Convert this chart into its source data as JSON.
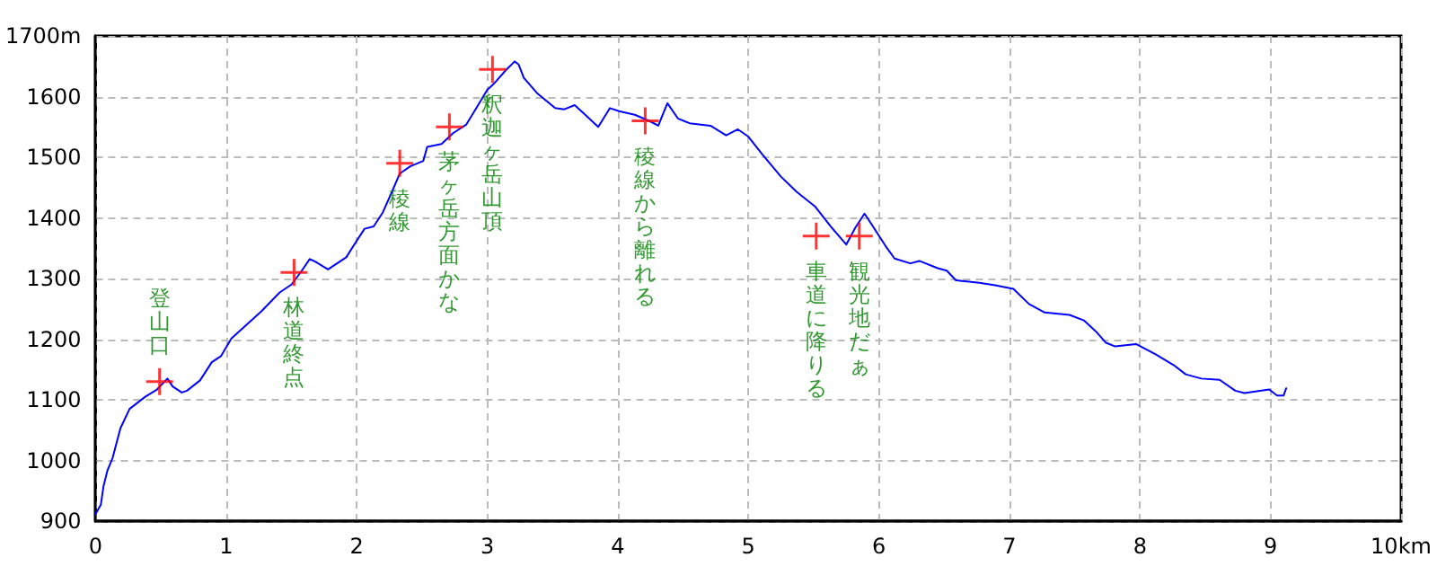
{
  "chart_data": {
    "type": "line",
    "xlim": [
      0,
      10
    ],
    "ylim": [
      900,
      1700
    ],
    "xticks": [
      0,
      1,
      2,
      3,
      4,
      5,
      6,
      7,
      8,
      9,
      {
        "value": 10,
        "label": "10km"
      }
    ],
    "yticks": [
      900,
      1000,
      1100,
      1200,
      1300,
      1400,
      1500,
      1600,
      {
        "value": 1700,
        "label": "1700m"
      }
    ],
    "grid": true,
    "series": [
      {
        "color": "#0000ff",
        "marker": "none",
        "x": [
          0,
          0.04,
          0.06,
          0.09,
          0.13,
          0.19,
          0.26,
          0.38,
          0.47,
          0.55,
          0.59,
          0.66,
          0.7,
          0.8,
          0.89,
          0.96,
          1.04,
          1.27,
          1.41,
          1.5,
          1.57,
          1.64,
          1.69,
          1.78,
          1.85,
          1.92,
          1.99,
          2.06,
          2.13,
          2.2,
          2.27,
          2.33,
          2.41,
          2.51,
          2.54,
          2.65,
          2.74,
          2.84,
          2.93,
          3.0,
          3.05,
          3.14,
          3.21,
          3.24,
          3.28,
          3.38,
          3.52,
          3.59,
          3.67,
          3.73,
          3.85,
          3.94,
          4.01,
          4.13,
          4.24,
          4.31,
          4.38,
          4.46,
          4.55,
          4.71,
          4.83,
          4.92,
          5.0,
          5.11,
          5.25,
          5.37,
          5.51,
          5.63,
          5.75,
          5.82,
          5.89,
          5.96,
          6.05,
          6.12,
          6.24,
          6.31,
          6.45,
          6.52,
          6.59,
          6.77,
          6.89,
          7.03,
          7.15,
          7.27,
          7.46,
          7.57,
          7.67,
          7.74,
          7.81,
          7.97,
          8.12,
          8.26,
          8.35,
          8.47,
          8.61,
          8.73,
          8.8,
          8.99,
          9.05,
          9.1,
          9.12
        ],
        "values": [
          912,
          927,
          957,
          983,
          1004,
          1053,
          1085,
          1105,
          1117,
          1135,
          1122,
          1112,
          1115,
          1132,
          1162,
          1172,
          1201,
          1246,
          1277,
          1290,
          1310,
          1332,
          1327,
          1315,
          1325,
          1335,
          1359,
          1382,
          1386,
          1409,
          1443,
          1473,
          1485,
          1494,
          1517,
          1522,
          1540,
          1554,
          1586,
          1611,
          1621,
          1643,
          1658,
          1653,
          1631,
          1606,
          1581,
          1579,
          1586,
          1574,
          1550,
          1581,
          1576,
          1570,
          1560,
          1552,
          1589,
          1564,
          1556,
          1552,
          1536,
          1546,
          1534,
          1504,
          1468,
          1443,
          1419,
          1386,
          1356,
          1384,
          1407,
          1384,
          1354,
          1333,
          1325,
          1329,
          1317,
          1313,
          1297,
          1293,
          1289,
          1283,
          1258,
          1244,
          1240,
          1231,
          1211,
          1194,
          1188,
          1192,
          1175,
          1157,
          1142,
          1135,
          1133,
          1115,
          1111,
          1117,
          1107,
          1107,
          1119
        ]
      },
      {
        "type": "scatter",
        "color": "#ff0000",
        "marker": "cross",
        "x": [
          0.49,
          1.52,
          2.33,
          2.71,
          3.04,
          4.21,
          5.52,
          5.85
        ],
        "values": [
          1130,
          1310,
          1490,
          1550,
          1645,
          1560,
          1370,
          1370
        ]
      }
    ],
    "annotations": [
      {
        "text": "登山口",
        "x": 0.49,
        "y": 1130
      },
      {
        "text": "林道終点",
        "x": 1.52,
        "y": 1310
      },
      {
        "text": "稜線",
        "x": 2.33,
        "y": 1490
      },
      {
        "text": "茅ヶ岳方面かな",
        "x": 2.71,
        "y": 1550
      },
      {
        "text": "釈迦ヶ岳山頂",
        "x": 3.04,
        "y": 1645
      },
      {
        "text": "稜線から離れる",
        "x": 4.21,
        "y": 1560
      },
      {
        "text": "車道に降りる",
        "x": 5.52,
        "y": 1370
      },
      {
        "text": "観光地だぁ",
        "x": 5.85,
        "y": 1370
      }
    ]
  }
}
